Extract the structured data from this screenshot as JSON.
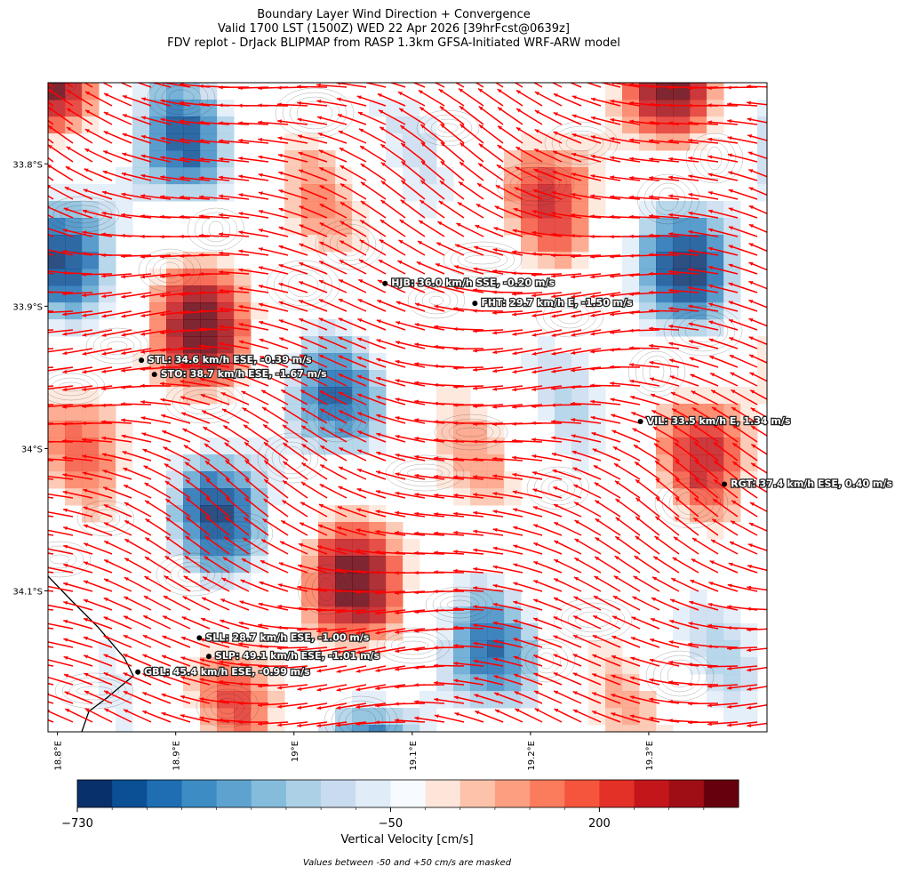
{
  "title": {
    "lines": [
      "Boundary Layer Wind Direction + Convergence",
      "Valid 1700 LST (1500Z) WED 22 Apr 2026 [39hrFcst@0639z]",
      "FDV replot - DrJack BLIPMAP from RASP 1.3km GFSA-Initiated WRF-ARW model"
    ]
  },
  "map": {
    "xlim": [
      18.792,
      19.4
    ],
    "ylim": [
      -33.743,
      -34.199
    ],
    "xticks": [
      {
        "value": 18.8,
        "label": "18.8°E"
      },
      {
        "value": 18.9,
        "label": "18.9°E"
      },
      {
        "value": 19.0,
        "label": "19°E"
      },
      {
        "value": 19.1,
        "label": "19.1°E"
      },
      {
        "value": 19.2,
        "label": "19.2°E"
      },
      {
        "value": 19.3,
        "label": "19.3°E"
      }
    ],
    "yticks": [
      {
        "value": -33.8,
        "label": "33.8°S"
      },
      {
        "value": -33.9,
        "label": "33.9°S"
      },
      {
        "value": -34.0,
        "label": "34°S"
      },
      {
        "value": -34.1,
        "label": "34.1°S"
      }
    ],
    "stations": [
      {
        "lon": 19.077,
        "lat": -33.884,
        "label": "HJB: 36.0 km/h SSE, -0.20 m/s"
      },
      {
        "lon": 19.153,
        "lat": -33.898,
        "label": "FHT: 29.7 km/h E, -1.50 m/s"
      },
      {
        "lon": 18.871,
        "lat": -33.938,
        "label": "STL: 34.6 km/h ESE, -0.39 m/s"
      },
      {
        "lon": 18.882,
        "lat": -33.948,
        "label": "STO: 38.7 km/h ESE, -1.67 m/s"
      },
      {
        "lon": 19.293,
        "lat": -33.981,
        "label": "VIL: 33.5 km/h E, 1.34 m/s"
      },
      {
        "lon": 19.364,
        "lat": -34.025,
        "label": "RGT: 37.4 km/h ESE, 0.40 m/s"
      },
      {
        "lon": 18.92,
        "lat": -34.133,
        "label": "SLL: 28.7 km/h ESE, -1.00 m/s"
      },
      {
        "lon": 18.928,
        "lat": -34.146,
        "label": "SLP: 49.1 km/h ESE, -1.01 m/s"
      },
      {
        "lon": 18.868,
        "lat": -34.157,
        "label": "GBL: 45.4 km/h ESE, -0.99 m/s"
      }
    ],
    "arrow_color": "#ff0000"
  },
  "colorbar": {
    "colors": [
      "#08306b",
      "#0b4f94",
      "#1f6eb3",
      "#3d8cc3",
      "#5ea3d0",
      "#85bcdc",
      "#acd0e6",
      "#c9dcef",
      "#e0ecf8",
      "#f7fbff",
      "#fee5d9",
      "#fcc2aa",
      "#fc9f81",
      "#fb7c5c",
      "#f5553c",
      "#e33128",
      "#c3161b",
      "#a00e15",
      "#67000d"
    ],
    "ticks": [
      {
        "value": -730,
        "label": "−730"
      },
      {
        "value": -50,
        "label": "−50"
      },
      {
        "value": 200,
        "label": "200"
      }
    ],
    "label": "Vertical Velocity [cm/s]"
  },
  "footnote": "Values between -50 and +50 cm/s are masked"
}
